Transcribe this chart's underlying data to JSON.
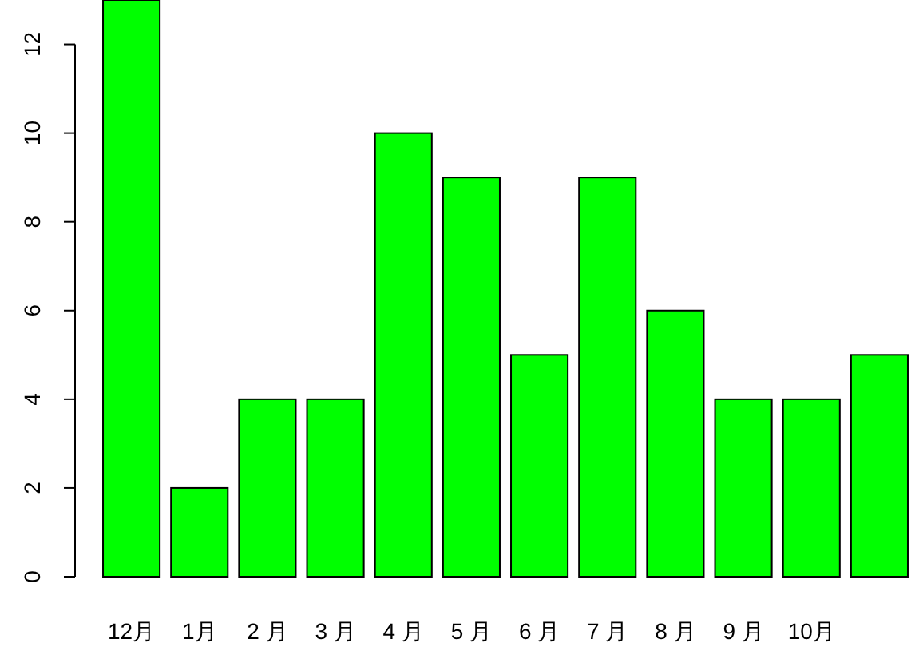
{
  "chart_data": {
    "type": "bar",
    "categories": [
      "12月",
      "1月",
      "2 月",
      "3 月",
      "4 月",
      "5 月",
      "6 月",
      "7 月",
      "8 月",
      "9 月",
      "10月",
      null
    ],
    "values": [
      13,
      2,
      4,
      4,
      10,
      9,
      5,
      9,
      6,
      4,
      4,
      5
    ],
    "color": "#00ff00",
    "ylim": [
      0,
      13
    ],
    "yticks": [
      0,
      2,
      4,
      6,
      8,
      10,
      12
    ],
    "grid": false
  }
}
